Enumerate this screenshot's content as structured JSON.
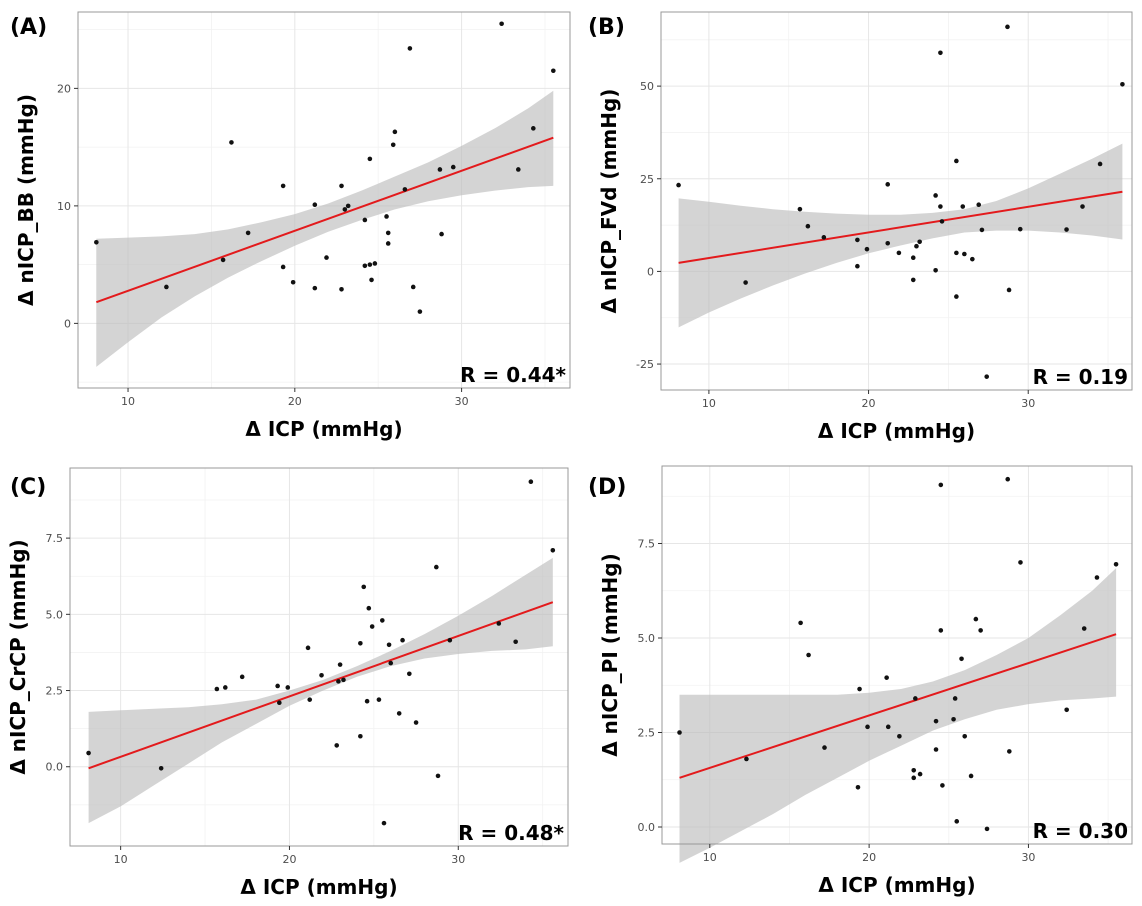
{
  "chart_data": [
    {
      "type": "scatter",
      "panel_label": "(A)",
      "xlabel": "Δ ICP (mmHg)",
      "ylabel": "Δ nICP_BB (mmHg)",
      "xlim": [
        7.0,
        36.5
      ],
      "ylim": [
        -5.5,
        26.5
      ],
      "x_ticks": [
        10,
        20,
        30
      ],
      "y_ticks": [
        0,
        10,
        20
      ],
      "y_tick_labels": [
        "0",
        "10",
        "20"
      ],
      "annotation": "R = 0.44*",
      "points": [
        [
          8.1,
          6.9
        ],
        [
          12.3,
          3.1
        ],
        [
          15.7,
          5.4
        ],
        [
          16.2,
          15.4
        ],
        [
          17.2,
          7.7
        ],
        [
          19.3,
          11.7
        ],
        [
          19.3,
          4.8
        ],
        [
          19.9,
          3.5
        ],
        [
          21.2,
          10.1
        ],
        [
          21.2,
          3.0
        ],
        [
          21.9,
          5.6
        ],
        [
          22.8,
          11.7
        ],
        [
          22.8,
          2.9
        ],
        [
          23.0,
          9.7
        ],
        [
          23.2,
          10.0
        ],
        [
          24.2,
          4.9
        ],
        [
          24.2,
          8.8
        ],
        [
          24.5,
          14.0
        ],
        [
          24.5,
          5.0
        ],
        [
          24.6,
          3.7
        ],
        [
          24.8,
          5.1
        ],
        [
          25.5,
          9.1
        ],
        [
          25.6,
          7.7
        ],
        [
          25.6,
          6.8
        ],
        [
          25.9,
          15.2
        ],
        [
          26.0,
          16.3
        ],
        [
          26.6,
          11.4
        ],
        [
          26.9,
          23.4
        ],
        [
          27.1,
          3.1
        ],
        [
          27.5,
          1.0
        ],
        [
          28.7,
          13.1
        ],
        [
          28.8,
          7.6
        ],
        [
          29.5,
          13.3
        ],
        [
          32.4,
          25.5
        ],
        [
          33.4,
          13.1
        ],
        [
          34.3,
          16.6
        ],
        [
          35.5,
          21.5
        ]
      ],
      "fit_line": [
        [
          8.1,
          1.8
        ],
        [
          35.5,
          15.8
        ]
      ],
      "ci_band": {
        "x": [
          8.1,
          10,
          12,
          14,
          16,
          18,
          20,
          22,
          24,
          26,
          28,
          30,
          32,
          34,
          35.5
        ],
        "lower": [
          -3.7,
          -1.6,
          0.5,
          2.3,
          3.9,
          5.3,
          6.6,
          7.8,
          8.8,
          9.7,
          10.4,
          10.9,
          11.3,
          11.6,
          11.7
        ],
        "upper": [
          7.2,
          7.3,
          7.4,
          7.6,
          8.0,
          8.6,
          9.3,
          10.2,
          11.3,
          12.5,
          13.7,
          15.1,
          16.6,
          18.3,
          19.8
        ]
      }
    },
    {
      "type": "scatter",
      "panel_label": "(B)",
      "xlabel": "Δ ICP (mmHg)",
      "ylabel": "Δ nICP_FVd (mmHg)",
      "xlim": [
        7.0,
        36.5
      ],
      "ylim": [
        -32,
        70
      ],
      "x_ticks": [
        10,
        20,
        30
      ],
      "y_ticks": [
        -25,
        0,
        25,
        50
      ],
      "y_tick_labels": [
        "-25",
        "0",
        "25",
        "50"
      ],
      "annotation": "R = 0.19",
      "points": [
        [
          8.1,
          23.3
        ],
        [
          12.3,
          -3.0
        ],
        [
          15.7,
          16.8
        ],
        [
          16.2,
          12.2
        ],
        [
          17.2,
          9.2
        ],
        [
          19.3,
          8.5
        ],
        [
          19.3,
          1.4
        ],
        [
          19.9,
          6.0
        ],
        [
          21.2,
          23.5
        ],
        [
          21.2,
          7.6
        ],
        [
          21.9,
          5.0
        ],
        [
          22.8,
          -2.3
        ],
        [
          22.8,
          3.7
        ],
        [
          23.0,
          6.8
        ],
        [
          23.2,
          8.0
        ],
        [
          24.2,
          0.3
        ],
        [
          24.2,
          20.5
        ],
        [
          24.5,
          59.0
        ],
        [
          24.5,
          17.5
        ],
        [
          24.6,
          13.5
        ],
        [
          25.5,
          29.8
        ],
        [
          25.5,
          5.0
        ],
        [
          25.5,
          -6.8
        ],
        [
          25.9,
          17.5
        ],
        [
          26.0,
          4.7
        ],
        [
          26.5,
          3.3
        ],
        [
          26.9,
          18.0
        ],
        [
          27.1,
          11.2
        ],
        [
          27.4,
          -28.4
        ],
        [
          28.7,
          66.0
        ],
        [
          28.8,
          -5.0
        ],
        [
          29.5,
          11.4
        ],
        [
          32.4,
          11.3
        ],
        [
          33.4,
          17.5
        ],
        [
          34.5,
          29.0
        ],
        [
          35.9,
          50.5
        ]
      ],
      "fit_line": [
        [
          8.1,
          2.3
        ],
        [
          35.9,
          21.5
        ]
      ],
      "ci_band": {
        "x": [
          8.1,
          10,
          12,
          14,
          16,
          18,
          20,
          22,
          24,
          26,
          28,
          30,
          32,
          34,
          35.9
        ],
        "lower": [
          -15.1,
          -11.1,
          -7.3,
          -3.8,
          -0.6,
          2.3,
          4.9,
          7.0,
          8.9,
          10.5,
          11.0,
          11.0,
          10.5,
          9.7,
          8.6
        ],
        "upper": [
          19.7,
          18.8,
          17.7,
          16.8,
          16.1,
          15.6,
          15.3,
          15.3,
          15.8,
          16.8,
          19.0,
          22.4,
          26.4,
          30.4,
          34.5
        ]
      }
    },
    {
      "type": "scatter",
      "panel_label": "(C)",
      "xlabel": "Δ ICP (mmHg)",
      "ylabel": "Δ nICP_CrCP (mmHg)",
      "xlim": [
        7.0,
        36.5
      ],
      "ylim": [
        -2.6,
        9.8
      ],
      "x_ticks": [
        10,
        20,
        30
      ],
      "y_ticks": [
        0.0,
        2.5,
        5.0,
        7.5
      ],
      "y_tick_labels": [
        "0.0",
        "2.5",
        "5.0",
        "7.5"
      ],
      "annotation": "R = 0.48*",
      "points": [
        [
          8.1,
          0.45
        ],
        [
          12.4,
          -0.05
        ],
        [
          15.7,
          2.55
        ],
        [
          16.2,
          2.6
        ],
        [
          17.2,
          2.95
        ],
        [
          19.3,
          2.65
        ],
        [
          19.4,
          2.1
        ],
        [
          19.9,
          2.6
        ],
        [
          21.1,
          3.9
        ],
        [
          21.2,
          2.2
        ],
        [
          21.9,
          3.0
        ],
        [
          22.8,
          0.7
        ],
        [
          22.9,
          2.8
        ],
        [
          23.0,
          3.35
        ],
        [
          23.2,
          2.85
        ],
        [
          24.2,
          1.0
        ],
        [
          24.2,
          4.05
        ],
        [
          24.4,
          5.9
        ],
        [
          24.6,
          2.15
        ],
        [
          24.7,
          5.2
        ],
        [
          24.9,
          4.6
        ],
        [
          25.3,
          2.2
        ],
        [
          25.5,
          4.8
        ],
        [
          25.6,
          -1.85
        ],
        [
          25.9,
          4.0
        ],
        [
          26.0,
          3.4
        ],
        [
          26.5,
          1.75
        ],
        [
          26.7,
          4.15
        ],
        [
          27.1,
          3.05
        ],
        [
          27.5,
          1.45
        ],
        [
          28.7,
          6.55
        ],
        [
          28.8,
          -0.3
        ],
        [
          29.5,
          4.15
        ],
        [
          32.4,
          4.7
        ],
        [
          33.4,
          4.1
        ],
        [
          34.3,
          9.35
        ],
        [
          35.6,
          7.1
        ]
      ],
      "fit_line": [
        [
          8.1,
          -0.05
        ],
        [
          35.6,
          5.4
        ]
      ],
      "ci_band": {
        "x": [
          8.1,
          10,
          12,
          14,
          16,
          18,
          20,
          22,
          24,
          26,
          28,
          30,
          32,
          34,
          35.6
        ],
        "lower": [
          -1.85,
          -1.3,
          -0.6,
          0.1,
          0.8,
          1.4,
          2.0,
          2.5,
          2.95,
          3.3,
          3.55,
          3.7,
          3.8,
          3.85,
          3.95
        ],
        "upper": [
          1.8,
          1.85,
          1.9,
          1.95,
          2.05,
          2.2,
          2.5,
          2.85,
          3.3,
          3.8,
          4.35,
          4.95,
          5.6,
          6.3,
          6.85
        ]
      }
    },
    {
      "type": "scatter",
      "panel_label": "(D)",
      "xlabel": "Δ ICP (mmHg)",
      "ylabel": "Δ nICP_PI (mmHg)",
      "xlim": [
        7.0,
        36.5
      ],
      "ylim": [
        -0.45,
        9.55
      ],
      "x_ticks": [
        10,
        20,
        30
      ],
      "y_ticks": [
        0.0,
        2.5,
        5.0,
        7.5
      ],
      "y_tick_labels": [
        "0.0",
        "2.5",
        "5.0",
        "7.5"
      ],
      "annotation": "R = 0.30",
      "points": [
        [
          8.1,
          2.5
        ],
        [
          12.3,
          1.8
        ],
        [
          15.7,
          5.4
        ],
        [
          16.2,
          4.55
        ],
        [
          17.2,
          2.1
        ],
        [
          19.3,
          1.05
        ],
        [
          19.4,
          3.65
        ],
        [
          19.9,
          2.65
        ],
        [
          21.1,
          3.95
        ],
        [
          21.2,
          2.65
        ],
        [
          21.9,
          2.4
        ],
        [
          22.8,
          1.3
        ],
        [
          22.8,
          1.5
        ],
        [
          23.2,
          1.4
        ],
        [
          22.9,
          3.4
        ],
        [
          24.2,
          2.05
        ],
        [
          24.2,
          2.8
        ],
        [
          24.5,
          9.05
        ],
        [
          24.5,
          5.2
        ],
        [
          24.6,
          1.1
        ],
        [
          25.3,
          2.85
        ],
        [
          25.4,
          3.4
        ],
        [
          25.5,
          0.15
        ],
        [
          25.8,
          4.45
        ],
        [
          26.0,
          2.4
        ],
        [
          26.4,
          1.35
        ],
        [
          26.7,
          5.5
        ],
        [
          27.0,
          5.2
        ],
        [
          27.4,
          -0.05
        ],
        [
          28.7,
          9.2
        ],
        [
          28.8,
          2.0
        ],
        [
          29.5,
          7.0
        ],
        [
          32.4,
          3.1
        ],
        [
          33.5,
          5.25
        ],
        [
          34.3,
          6.6
        ],
        [
          35.5,
          6.95
        ]
      ],
      "fit_line": [
        [
          8.1,
          1.3
        ],
        [
          35.5,
          5.1
        ]
      ],
      "ci_band": {
        "x": [
          8.1,
          10,
          12,
          14,
          16,
          18,
          20,
          22,
          24,
          26,
          28,
          30,
          32,
          34,
          35.5
        ],
        "lower": [
          -0.95,
          -0.55,
          -0.1,
          0.35,
          0.85,
          1.3,
          1.75,
          2.15,
          2.55,
          2.85,
          3.1,
          3.25,
          3.35,
          3.4,
          3.45
        ],
        "upper": [
          3.5,
          3.5,
          3.5,
          3.5,
          3.5,
          3.5,
          3.55,
          3.65,
          3.85,
          4.15,
          4.55,
          5.0,
          5.6,
          6.25,
          6.85
        ]
      }
    }
  ]
}
